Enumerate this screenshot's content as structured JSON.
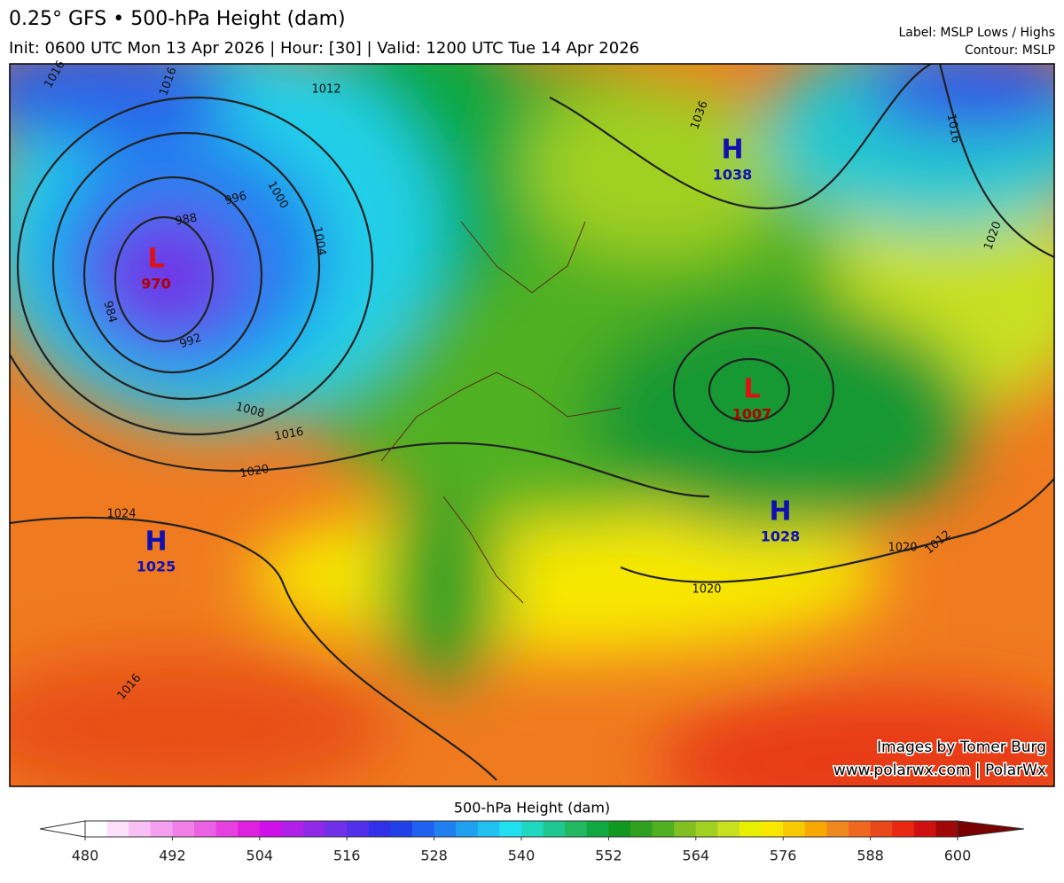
{
  "header": {
    "title": "0.25° GFS • 500-hPa Height (dam)",
    "subtitle": "Init: 0600 UTC Mon 13 Apr 2026 | Hour: [30] | Valid: 1200 UTC Tue 14 Apr 2026",
    "label_note": "Label: MSLP Lows / Highs",
    "contour_note": "Contour: MSLP"
  },
  "pressure_centers": [
    {
      "kind": "H",
      "value": 1038
    },
    {
      "kind": "L",
      "value": 970
    },
    {
      "kind": "L",
      "value": 1007
    },
    {
      "kind": "H",
      "value": 1028
    },
    {
      "kind": "H",
      "value": 1025
    }
  ],
  "contour_labels": [
    1016,
    1016,
    1012,
    1000,
    996,
    988,
    984,
    992,
    1004,
    1008,
    1016,
    1020,
    1024,
    1016,
    1036,
    1016,
    1020,
    1020,
    1012,
    1020
  ],
  "credit": [
    "Images by Tomer Burg",
    "www.polarwx.com | PolarWx"
  ],
  "colorbar": {
    "title": "500-hPa Height (dam)",
    "lim": [
      480,
      600
    ],
    "ticks": [
      480,
      492,
      504,
      516,
      528,
      540,
      552,
      564,
      576,
      588,
      600
    ],
    "colors": [
      "#ffffff",
      "#fde0fa",
      "#f8c0f4",
      "#f4a0ee",
      "#f080e8",
      "#ec60e4",
      "#e840e0",
      "#e020e0",
      "#d010e8",
      "#b020e8",
      "#9028e8",
      "#7030e8",
      "#5030e8",
      "#3030e8",
      "#2040e8",
      "#2060f0",
      "#2080f0",
      "#20a0f0",
      "#20c0f0",
      "#20e0f0",
      "#20d8c0",
      "#20c890",
      "#20b860",
      "#10a840",
      "#109820",
      "#30a020",
      "#50b020",
      "#80c020",
      "#a0d020",
      "#c8e020",
      "#e8f000",
      "#f8e800",
      "#f8c800",
      "#f8a800",
      "#f08820",
      "#f06820",
      "#e84818",
      "#e82810",
      "#d01010",
      "#a00808"
    ],
    "under_color": "#ffffff",
    "over_color": "#7a0000"
  }
}
